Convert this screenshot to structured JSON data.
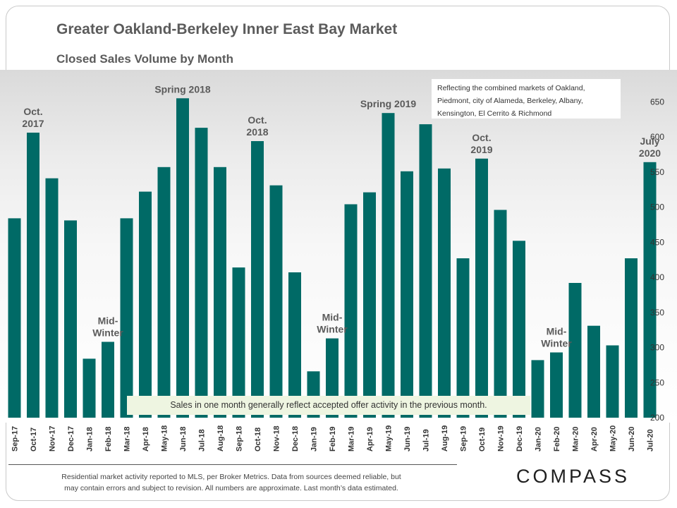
{
  "header": {
    "title": "Greater Oakland-Berkeley Inner East Bay Market",
    "subtitle": "Closed Sales Volume  by Month"
  },
  "note_lines": [
    "Reflecting the combined markets of Oakland,",
    "Piedmont, city of Alameda, Berkeley, Albany,",
    "Kensington, El Cerrito & Richmond"
  ],
  "callout": "Sales in one month generally reflect accepted offer activity in the previous month.",
  "footer": {
    "line1": "Residential market activity reported to MLS, per Broker Metrics. Data from sources deemed reliable, but",
    "line2": "may contain errors and subject to revision. All numbers are approximate. Last month’s data estimated."
  },
  "logo": "COMPASS",
  "colors": {
    "bar": "#006a66",
    "text": "#5b5b5b",
    "callout_bg": "#eef5e1"
  },
  "chart_data": {
    "type": "bar",
    "title": "Closed Sales Volume  by Month",
    "ylim": [
      200,
      650
    ],
    "y_ticks": [
      "200",
      "250",
      "300",
      "350",
      "400",
      "450",
      "500",
      "550",
      "600",
      "650"
    ],
    "y_axis_side": "right",
    "grid": false,
    "categories": [
      "Sep-17",
      "Oct-17",
      "Nov-17",
      "Dec-17",
      "Jan-18",
      "Feb-18",
      "Mar-18",
      "Apr-18",
      "May-18",
      "Jun-18",
      "Jul-18",
      "Aug-18",
      "Sep-18",
      "Oct-18",
      "Nov-18",
      "Dec-18",
      "Jan-19",
      "Feb-19",
      "Mar-19",
      "Apr-19",
      "May-19",
      "Jun-19",
      "Jul-19",
      "Aug-19",
      "Sep-19",
      "Oct-19",
      "Nov-19",
      "Dec-19",
      "Jan-20",
      "Feb-20",
      "Mar-20",
      "Apr-20",
      "May-20",
      "Jun-20",
      "Jul-20"
    ],
    "values": [
      484,
      606,
      541,
      481,
      284,
      308,
      484,
      522,
      557,
      655,
      613,
      557,
      414,
      594,
      531,
      407,
      266,
      313,
      504,
      521,
      634,
      551,
      618,
      555,
      427,
      569,
      496,
      452,
      282,
      293,
      392,
      331,
      303,
      427,
      564
    ],
    "annotations": [
      {
        "index": 1,
        "lines": [
          "Oct.",
          "2017"
        ]
      },
      {
        "index": 5,
        "lines": [
          "Mid-",
          "Winter"
        ]
      },
      {
        "index": 9,
        "lines": [
          "Spring 2018"
        ]
      },
      {
        "index": 13,
        "lines": [
          "Oct.",
          "2018"
        ]
      },
      {
        "index": 17,
        "lines": [
          "Mid-",
          "Winter"
        ]
      },
      {
        "index": 20,
        "lines": [
          "Spring 2019"
        ]
      },
      {
        "index": 25,
        "lines": [
          "Oct.",
          "2019"
        ]
      },
      {
        "index": 29,
        "lines": [
          "Mid-",
          "Winter"
        ]
      },
      {
        "index": 34,
        "lines": [
          "July",
          "2020"
        ]
      }
    ]
  }
}
